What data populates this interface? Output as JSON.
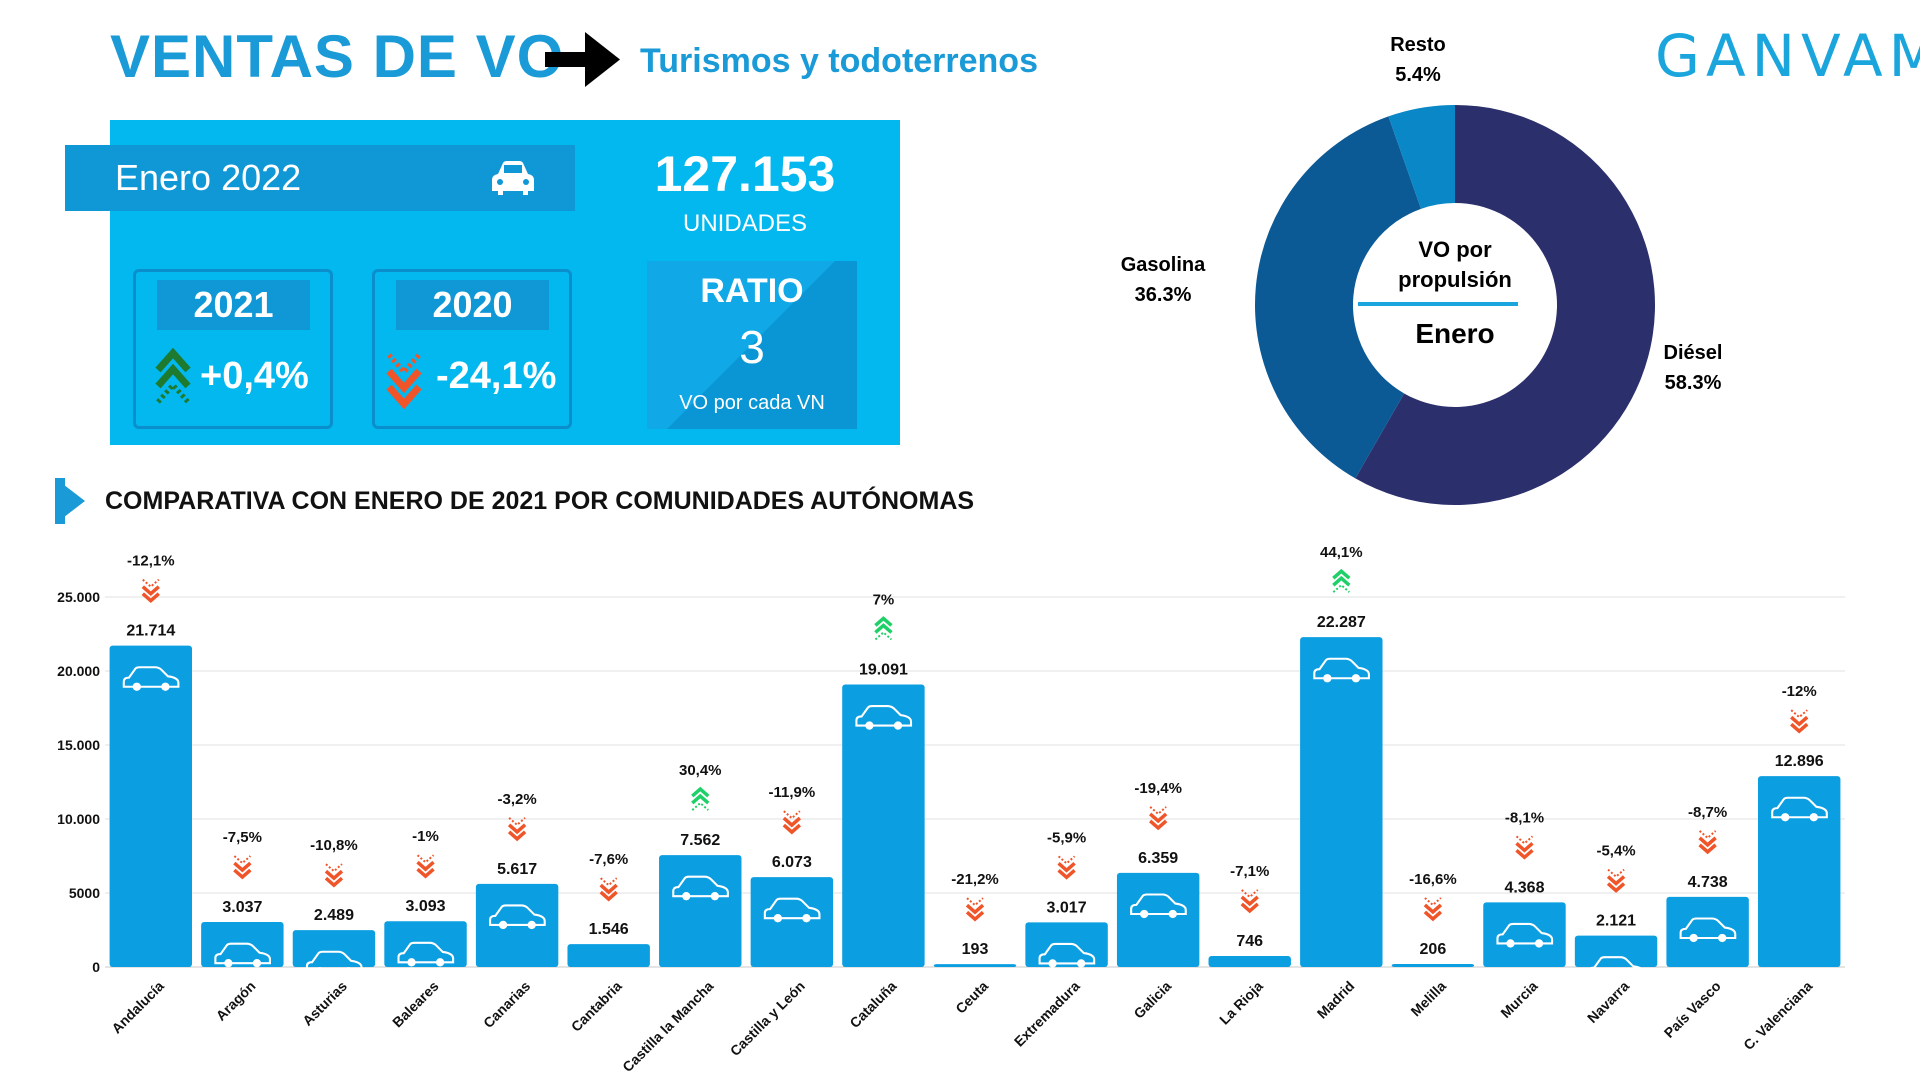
{
  "header": {
    "title": "VENTAS DE VO",
    "subtitle": "Turismos y todoterrenos",
    "logo": "GANVAM"
  },
  "kpi": {
    "period": "Enero 2022",
    "units_value": "127.153",
    "units_label": "UNIDADES",
    "comparisons": [
      {
        "year": "2021",
        "change": "+0,4%",
        "direction": "up",
        "color": "#1e7a2e"
      },
      {
        "year": "2020",
        "change": "-24,1%",
        "direction": "down",
        "color": "#f0552a"
      }
    ],
    "ratio_title": "RATIO",
    "ratio_value": "3",
    "ratio_label": "VO por cada VN"
  },
  "pie": {
    "center_title_line1": "VO por",
    "center_title_line2": "propulsión",
    "center_month": "Enero",
    "slices": [
      {
        "name": "Diésel",
        "label": "58.3%",
        "value": 58.3,
        "color": "#2b2f6b"
      },
      {
        "name": "Gasolina",
        "label": "36.3%",
        "value": 36.3,
        "color": "#0b5a96"
      },
      {
        "name": "Resto",
        "label": "5.4%",
        "value": 5.4,
        "color": "#0a87c6"
      }
    ]
  },
  "section": {
    "title": "COMPARATIVA CON ENERO DE 2021 POR COMUNIDADES AUTÓNOMAS"
  },
  "colors": {
    "accent": "#1a9ad6",
    "bar": "#0b9ee0",
    "up": "#1fd068",
    "down": "#f0552a"
  },
  "chart_data": {
    "type": "bar",
    "ylim": [
      0,
      25000
    ],
    "yticks": [
      {
        "value": 0,
        "label": "0"
      },
      {
        "value": 5000,
        "label": "5000"
      },
      {
        "value": 10000,
        "label": "10.000"
      },
      {
        "value": 15000,
        "label": "15.000"
      },
      {
        "value": 20000,
        "label": "20.000"
      },
      {
        "value": 25000,
        "label": "25.000"
      }
    ],
    "categories": [
      "Andalucía",
      "Aragón",
      "Asturias",
      "Baleares",
      "Canarias",
      "Cantabria",
      "Castilla la Mancha",
      "Castilla y León",
      "Cataluña",
      "Ceuta",
      "Extremadura",
      "Galicia",
      "La Rioja",
      "Madrid",
      "Melilla",
      "Murcia",
      "Navarra",
      "País Vasco",
      "C. Valenciana"
    ],
    "values": [
      21714,
      3037,
      2489,
      3093,
      5617,
      1546,
      7562,
      6073,
      19091,
      193,
      3017,
      6359,
      746,
      22287,
      206,
      4368,
      2121,
      4738,
      12896
    ],
    "value_labels": [
      "21.714",
      "3.037",
      "2.489",
      "3.093",
      "5.617",
      "1.546",
      "7.562",
      "6.073",
      "19.091",
      "193",
      "3.017",
      "6.359",
      "746",
      "22.287",
      "206",
      "4.368",
      "2.121",
      "4.738",
      "12.896"
    ],
    "changes": [
      "-12,1%",
      "-7,5%",
      "-10,8%",
      "-1%",
      "-3,2%",
      "-7,6%",
      "30,4%",
      "-11,9%",
      "7%",
      "-21,2%",
      "-5,9%",
      "-19,4%",
      "-7,1%",
      "44,1%",
      "-16,6%",
      "-8,1%",
      "-5,4%",
      "-8,7%",
      "-12%"
    ],
    "change_directions": [
      "down",
      "down",
      "down",
      "down",
      "down",
      "down",
      "up",
      "down",
      "up",
      "down",
      "down",
      "down",
      "down",
      "up",
      "down",
      "down",
      "down",
      "down",
      "down"
    ]
  }
}
